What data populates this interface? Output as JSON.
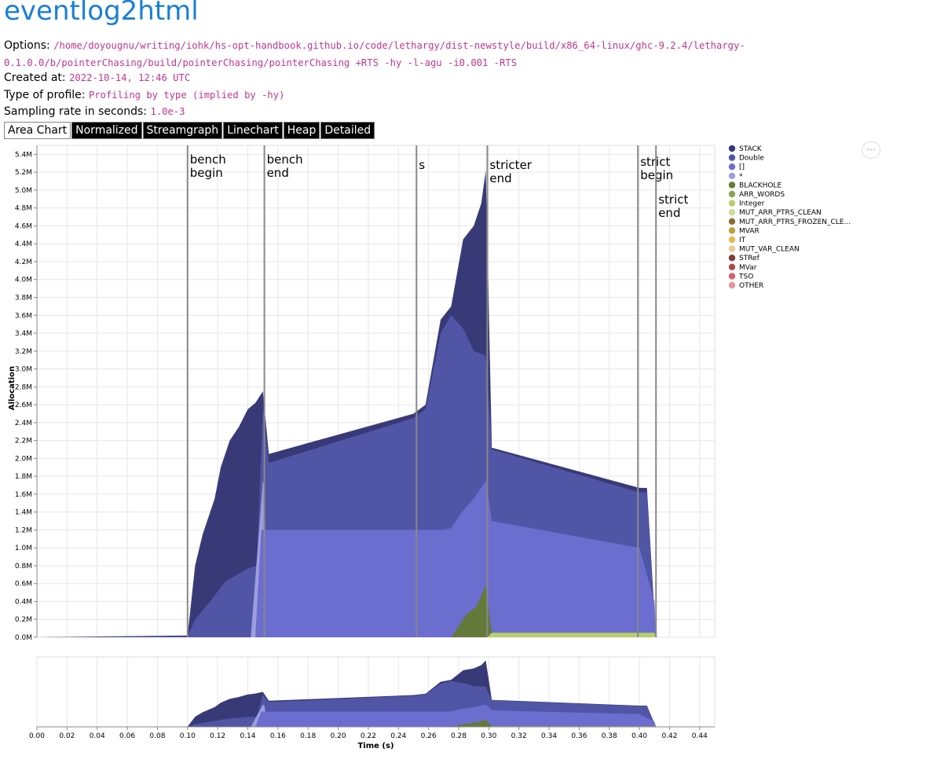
{
  "header": {
    "title": "eventlog2html",
    "options_label": "Options:",
    "options_value": "/home/doyougnu/writing/iohk/hs-opt-handbook.github.io/code/lethargy/dist-newstyle/build/x86_64-linux/ghc-9.2.4/lethargy-0.1.0.0/b/pointerChasing/build/pointerChasing/pointerChasing +RTS -hy -l-agu -i0.001 -RTS",
    "created_label": "Created at:",
    "created_value": "2022-10-14, 12:46 UTC",
    "profile_type_label": "Type of profile:",
    "profile_type_value": "Profiling by type (implied by -hy)",
    "sampling_label": "Sampling rate in seconds:",
    "sampling_value": "1.0e-3"
  },
  "tabs": [
    {
      "label": "Area Chart",
      "active": true
    },
    {
      "label": "Normalized",
      "active": false
    },
    {
      "label": "Streamgraph",
      "active": false
    },
    {
      "label": "Linechart",
      "active": false
    },
    {
      "label": "Heap",
      "active": false
    },
    {
      "label": "Detailed",
      "active": false
    }
  ],
  "menu": {
    "label": "⋯"
  },
  "chart_data": {
    "type": "area",
    "stacked": true,
    "xlabel": "Time (s)",
    "ylabel": "Allocation",
    "xlim": [
      0.0,
      0.45
    ],
    "ylim": [
      0.0,
      5.5
    ],
    "grid": true,
    "legend_position": "right",
    "main_x_domain": [
      0.0,
      0.45
    ],
    "y_ticks": [
      "0.0M",
      "0.2M",
      "0.4M",
      "0.6M",
      "0.8M",
      "1.0M",
      "1.2M",
      "1.4M",
      "1.6M",
      "1.8M",
      "2.0M",
      "2.2M",
      "2.4M",
      "2.6M",
      "2.8M",
      "3.0M",
      "3.2M",
      "3.4M",
      "3.6M",
      "3.8M",
      "4.0M",
      "4.2M",
      "4.4M",
      "4.6M",
      "4.8M",
      "5.0M",
      "5.2M",
      "5.4M"
    ],
    "x_ticks": [
      "0.00",
      "0.02",
      "0.04",
      "0.06",
      "0.08",
      "0.10",
      "0.12",
      "0.14",
      "0.16",
      "0.18",
      "0.20",
      "0.22",
      "0.24",
      "0.26",
      "0.28",
      "0.30",
      "0.32",
      "0.34",
      "0.36",
      "0.38",
      "0.40",
      "0.42",
      "0.44"
    ],
    "legend": [
      {
        "name": "STACK",
        "color": "#383a78"
      },
      {
        "name": "Double",
        "color": "#5155a6"
      },
      {
        "name": "[]",
        "color": "#6b6ecf"
      },
      {
        "name": "*",
        "color": "#9c9ede"
      },
      {
        "name": "BLACKHOLE",
        "color": "#637939"
      },
      {
        "name": "ARR_WORDS",
        "color": "#8ca252"
      },
      {
        "name": "Integer",
        "color": "#b5cf6b"
      },
      {
        "name": "MUT_ARR_PTRS_CLEAN",
        "color": "#cedb9c"
      },
      {
        "name": "MUT_ARR_PTRS_FROZEN_CLE...",
        "color": "#8c6d31"
      },
      {
        "name": "MVAR",
        "color": "#bd9e39"
      },
      {
        "name": "IT",
        "color": "#e7ba52"
      },
      {
        "name": "MUT_VAR_CLEAN",
        "color": "#e7cb94"
      },
      {
        "name": "STRef",
        "color": "#843c39"
      },
      {
        "name": "MVar",
        "color": "#ad494a"
      },
      {
        "name": "TSO",
        "color": "#d6616b"
      },
      {
        "name": "OTHER",
        "color": "#e7969c"
      }
    ],
    "series": [
      {
        "name": "Integer",
        "color": "#b5cf6b",
        "points": [
          [
            0.0,
            0
          ],
          [
            0.299,
            0
          ],
          [
            0.302,
            0.05
          ],
          [
            0.41,
            0.05
          ],
          [
            0.411,
            0
          ]
        ]
      },
      {
        "name": "BLACKHOLE",
        "color": "#637939",
        "points": [
          [
            0.0,
            0
          ],
          [
            0.275,
            0
          ],
          [
            0.285,
            0.25
          ],
          [
            0.292,
            0.35
          ],
          [
            0.298,
            0.58
          ],
          [
            0.302,
            0.05
          ],
          [
            0.41,
            0.05
          ],
          [
            0.411,
            0
          ]
        ]
      },
      {
        "name": "[]",
        "color": "#6b6ecf",
        "points": [
          [
            0.0,
            0
          ],
          [
            0.145,
            0
          ],
          [
            0.149,
            1.2
          ],
          [
            0.151,
            1.2
          ],
          [
            0.25,
            1.2
          ],
          [
            0.27,
            1.2
          ],
          [
            0.275,
            1.22
          ],
          [
            0.282,
            1.4
          ],
          [
            0.29,
            1.55
          ],
          [
            0.298,
            1.75
          ],
          [
            0.302,
            1.3
          ],
          [
            0.4,
            1.0
          ],
          [
            0.41,
            0.4
          ],
          [
            0.411,
            0
          ]
        ]
      },
      {
        "name": "*",
        "color": "#9c9ede",
        "points": [
          [
            0.0,
            0
          ],
          [
            0.142,
            0
          ],
          [
            0.15,
            1.75
          ],
          [
            0.151,
            1.7
          ],
          [
            0.153,
            0
          ],
          [
            0.45,
            0
          ]
        ]
      },
      {
        "name": "Double",
        "color": "#5155a6",
        "points": [
          [
            0.0,
            0
          ],
          [
            0.1,
            0.01
          ],
          [
            0.105,
            0.2
          ],
          [
            0.115,
            0.4
          ],
          [
            0.125,
            0.62
          ],
          [
            0.14,
            0.77
          ],
          [
            0.146,
            0.8
          ],
          [
            0.15,
            2.55
          ],
          [
            0.154,
            1.95
          ],
          [
            0.25,
            2.45
          ],
          [
            0.258,
            2.55
          ],
          [
            0.268,
            3.4
          ],
          [
            0.275,
            3.6
          ],
          [
            0.283,
            3.45
          ],
          [
            0.29,
            3.2
          ],
          [
            0.298,
            3.15
          ],
          [
            0.302,
            2.1
          ],
          [
            0.4,
            1.62
          ],
          [
            0.405,
            1.62
          ],
          [
            0.41,
            0.25
          ],
          [
            0.411,
            0
          ]
        ]
      },
      {
        "name": "STACK",
        "color": "#383a78",
        "points": [
          [
            0.0,
            0
          ],
          [
            0.1,
            0.02
          ],
          [
            0.105,
            0.8
          ],
          [
            0.11,
            1.15
          ],
          [
            0.118,
            1.55
          ],
          [
            0.122,
            1.9
          ],
          [
            0.128,
            2.2
          ],
          [
            0.134,
            2.35
          ],
          [
            0.14,
            2.55
          ],
          [
            0.145,
            2.62
          ],
          [
            0.15,
            2.75
          ],
          [
            0.154,
            2.05
          ],
          [
            0.25,
            2.5
          ],
          [
            0.258,
            2.6
          ],
          [
            0.268,
            3.55
          ],
          [
            0.275,
            3.7
          ],
          [
            0.283,
            4.45
          ],
          [
            0.29,
            4.6
          ],
          [
            0.295,
            4.85
          ],
          [
            0.298,
            5.22
          ],
          [
            0.302,
            2.12
          ],
          [
            0.4,
            1.67
          ],
          [
            0.405,
            1.67
          ],
          [
            0.41,
            0.27
          ],
          [
            0.411,
            0
          ]
        ]
      }
    ],
    "annotations": [
      {
        "x": 0.1,
        "lines": [
          "bench",
          "begin"
        ],
        "dy": 0
      },
      {
        "x": 0.151,
        "lines": [
          "bench",
          "end"
        ],
        "dy": 0
      },
      {
        "x": 0.252,
        "lines": [
          "s"
        ],
        "dy": 7
      },
      {
        "x": 0.299,
        "lines": [
          "stricter",
          "end"
        ],
        "dy": 7
      },
      {
        "x": 0.399,
        "lines": [
          "strict",
          "begin"
        ],
        "dy": 3
      },
      {
        "x": 0.411,
        "lines": [
          "strict",
          "end"
        ],
        "dy": 51
      }
    ]
  }
}
